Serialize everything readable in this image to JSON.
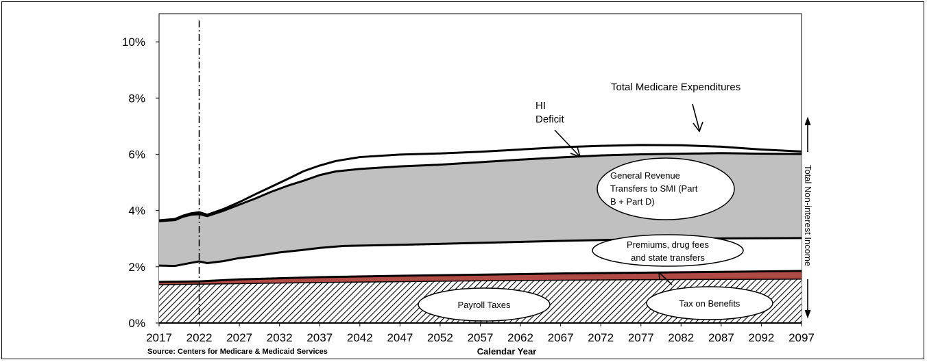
{
  "chart_data": {
    "type": "area",
    "x_range": [
      2017,
      2097
    ],
    "ylim": [
      0,
      11
    ],
    "x_ticks": [
      2017,
      2022,
      2027,
      2032,
      2037,
      2042,
      2047,
      2052,
      2057,
      2062,
      2067,
      2072,
      2077,
      2082,
      2087,
      2092,
      2097
    ],
    "y_ticks": [
      0,
      2,
      4,
      6,
      8,
      10
    ],
    "y_tick_labels": [
      "0%",
      "2%",
      "4%",
      "6%",
      "8%",
      "10%"
    ],
    "xlabel": "Calendar Year",
    "source": "Source:  Centers for Medicare & Medicaid Services",
    "reference_line_year": 2022,
    "series": [
      {
        "name": "Payroll Taxes",
        "color": "#ffffff",
        "pattern": "hatch",
        "x": [
          2017,
          2022,
          2027,
          2037,
          2047,
          2057,
          2067,
          2077,
          2087,
          2097
        ],
        "top": [
          1.36,
          1.38,
          1.4,
          1.44,
          1.47,
          1.5,
          1.52,
          1.54,
          1.55,
          1.56
        ]
      },
      {
        "name": "Tax on Benefits",
        "color": "#b04a44",
        "x": [
          2017,
          2022,
          2027,
          2037,
          2047,
          2057,
          2067,
          2077,
          2087,
          2097
        ],
        "top": [
          1.46,
          1.48,
          1.55,
          1.63,
          1.68,
          1.72,
          1.76,
          1.79,
          1.82,
          1.85
        ]
      },
      {
        "name": "Premiums, drug  fees and state transfers",
        "color": "#ffffff",
        "x": [
          2017,
          2019,
          2021,
          2022,
          2023,
          2025,
          2027,
          2029,
          2032,
          2035,
          2037,
          2040,
          2047,
          2057,
          2067,
          2077,
          2087,
          2097
        ],
        "top": [
          2.04,
          2.03,
          2.14,
          2.19,
          2.13,
          2.2,
          2.31,
          2.38,
          2.51,
          2.6,
          2.67,
          2.74,
          2.78,
          2.85,
          2.92,
          2.98,
          3.01,
          3.02
        ]
      },
      {
        "name": "General Revenue Transfers to SMI (Part B + Part D)",
        "color": "#c0c0c0",
        "x": [
          2017,
          2019,
          2020,
          2021,
          2022,
          2023,
          2025,
          2027,
          2029,
          2031,
          2033,
          2035,
          2037,
          2039,
          2042,
          2047,
          2052,
          2057,
          2062,
          2067,
          2072,
          2077,
          2082,
          2087,
          2092,
          2097
        ],
        "top": [
          3.62,
          3.66,
          3.78,
          3.85,
          3.87,
          3.8,
          3.99,
          4.21,
          4.43,
          4.67,
          4.88,
          5.06,
          5.26,
          5.39,
          5.48,
          5.57,
          5.63,
          5.72,
          5.81,
          5.89,
          5.96,
          6.0,
          6.02,
          6.04,
          6.02,
          6.01
        ]
      },
      {
        "name": "Total Medicare Expenditures",
        "color": "#000000",
        "x": [
          2017,
          2019,
          2020,
          2021,
          2022,
          2023,
          2025,
          2027,
          2029,
          2031,
          2033,
          2035,
          2037,
          2039,
          2042,
          2047,
          2052,
          2057,
          2062,
          2067,
          2072,
          2077,
          2082,
          2087,
          2092,
          2097
        ],
        "top": [
          3.65,
          3.7,
          3.82,
          3.9,
          3.94,
          3.85,
          4.05,
          4.3,
          4.58,
          4.85,
          5.12,
          5.4,
          5.6,
          5.76,
          5.9,
          5.99,
          6.03,
          6.09,
          6.17,
          6.25,
          6.3,
          6.33,
          6.32,
          6.27,
          6.17,
          6.1
        ]
      }
    ],
    "annotations": {
      "total_expenditures": "Total Medicare Expenditures",
      "hi_deficit_line1": "HI",
      "hi_deficit_line2": "Deficit",
      "gen_rev_line1": "General Revenue",
      "gen_rev_line2": "Transfers to SMI (Part",
      "gen_rev_line3": "B + Part D)",
      "premiums_line1": "Premiums, drug  fees",
      "premiums_line2": "and state transfers",
      "payroll": "Payroll Taxes",
      "tax_benefits": "Tax on Benefits",
      "non_interest": "Total Non-interest Income"
    }
  }
}
